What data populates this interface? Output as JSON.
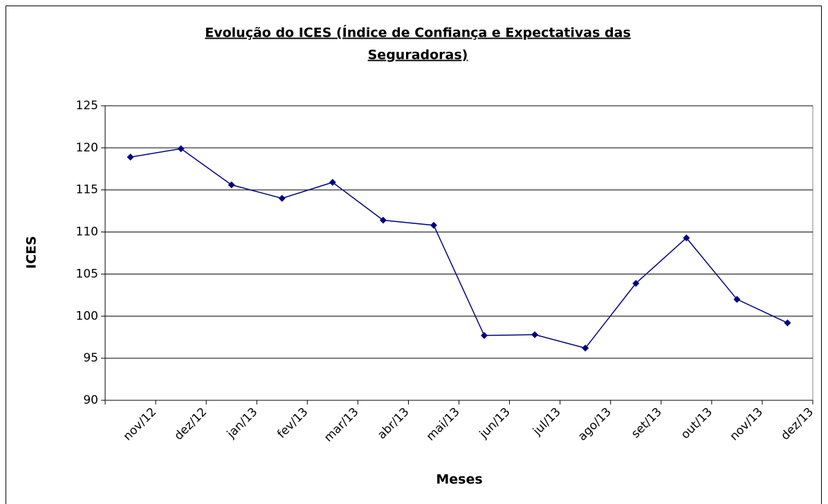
{
  "chart_data": {
    "type": "line",
    "title": [
      "Evolução do ICES (Índice de Confiança e Expectativas das ",
      "Seguradoras)"
    ],
    "x_label": "Meses",
    "y_label": "ICES",
    "categories": [
      "nov/12",
      "dez/12",
      "jan/13",
      "fev/13",
      "mar/13",
      "abr/13",
      "mai/13",
      "jun/13",
      "jul/13",
      "ago/13",
      "set/13",
      "out/13",
      "nov/13",
      "dez/13"
    ],
    "values": [
      118.9,
      119.9,
      115.6,
      114.0,
      115.9,
      111.4,
      110.8,
      97.7,
      97.8,
      96.2,
      103.9,
      109.3,
      102.0,
      99.2
    ],
    "color": "#000080",
    "ylim": [
      90,
      125
    ],
    "yticks": [
      90,
      95,
      100,
      105,
      110,
      115,
      120,
      125
    ],
    "grid": true
  }
}
